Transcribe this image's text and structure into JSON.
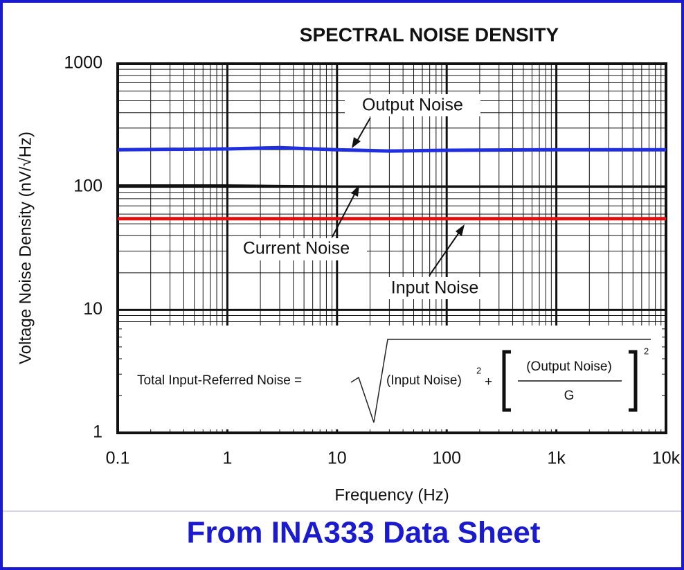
{
  "chart_data": {
    "type": "line",
    "title": "SPECTRAL NOISE DENSITY",
    "xlabel": "Frequency (Hz)",
    "ylabel": "Voltage Noise Density (nV/√Hz)",
    "log_x": true,
    "log_y": true,
    "grid": true,
    "xlim": [
      0.1,
      10000
    ],
    "ylim": [
      1,
      1000
    ],
    "xticks": [
      0.1,
      1,
      10,
      100,
      {
        "value": 1000,
        "label": "1k"
      },
      {
        "value": 10000,
        "label": "10k"
      }
    ],
    "yticks": [
      1,
      10,
      100,
      1000
    ],
    "x": [
      0.1,
      1,
      3,
      10,
      30,
      100,
      1000,
      10000
    ],
    "series": [
      {
        "name": "Output Noise",
        "color": "#1f2fe0",
        "values": [
          200,
          203,
          208,
          200,
          195,
          198,
          200,
          200
        ]
      },
      {
        "name": "Current Noise",
        "color": "#111111",
        "values": [
          103,
          103,
          102,
          101,
          101,
          101,
          101,
          101
        ]
      },
      {
        "name": "Input Noise",
        "color": "#e01010",
        "values": [
          55,
          55,
          55,
          55,
          55,
          55,
          55,
          55
        ]
      }
    ],
    "formula": {
      "lhs": "Total Input-Referred Noise =",
      "term1": "(Input Noise)",
      "exp1": "2",
      "plus": "+",
      "numerator": "(Output Noise)",
      "denominator": "G",
      "exp2": "2"
    },
    "footer": "From INA333 Data Sheet"
  }
}
